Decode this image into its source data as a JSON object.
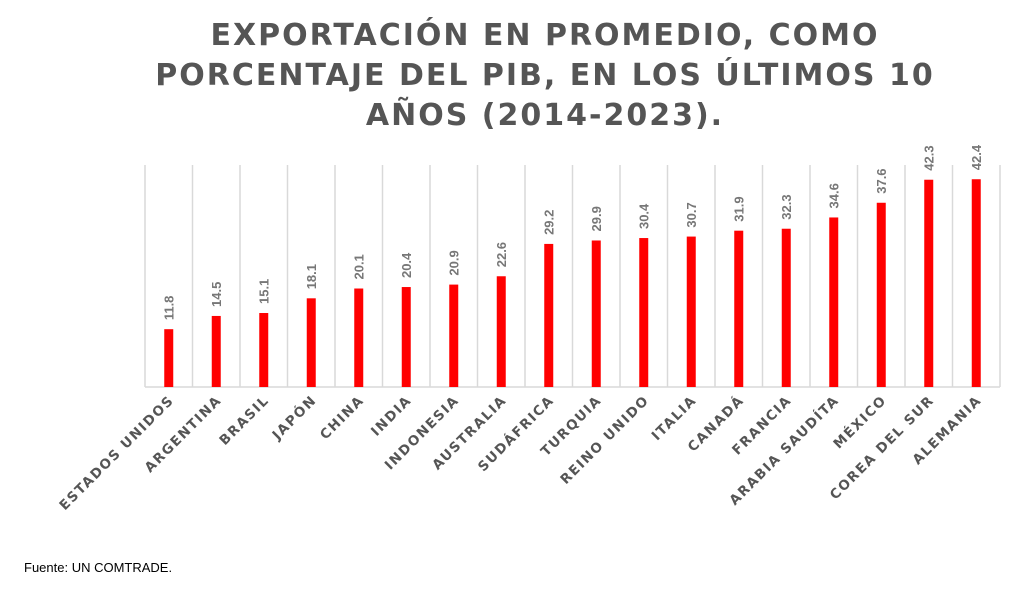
{
  "chart_data": {
    "type": "bar",
    "title_lines": [
      "EXPORTACIÓN EN PROMEDIO, COMO",
      "PORCENTAJE DEL PIB, EN LOS ÚLTIMOS 10",
      "AÑOS (2014-2023)."
    ],
    "categories": [
      "ESTADOS UNIDOS",
      "ARGENTINA",
      "BRASIL",
      "JAPÓN",
      "CHINA",
      "INDIA",
      "INDONESIA",
      "AUSTRALIA",
      "SUDÁFRICA",
      "TURQUIA",
      "REINO UNIDO",
      "ITALIA",
      "CANADÁ",
      "FRANCIA",
      "ARABIA SAUDÍTA",
      "MÉXICO",
      "COREA DEL SUR",
      "ALEMANIA"
    ],
    "values": [
      11.8,
      14.5,
      15.1,
      18.1,
      20.1,
      20.4,
      20.9,
      22.6,
      29.2,
      29.9,
      30.4,
      30.7,
      31.9,
      32.3,
      34.6,
      37.6,
      42.3,
      42.4
    ],
    "xlabel": "",
    "ylabel": "",
    "ylim": [
      0,
      45
    ],
    "grid": "vertical category separators",
    "bar_color": "#ff0000",
    "label_color": "#777777"
  },
  "source": "Fuente: UN COMTRADE."
}
